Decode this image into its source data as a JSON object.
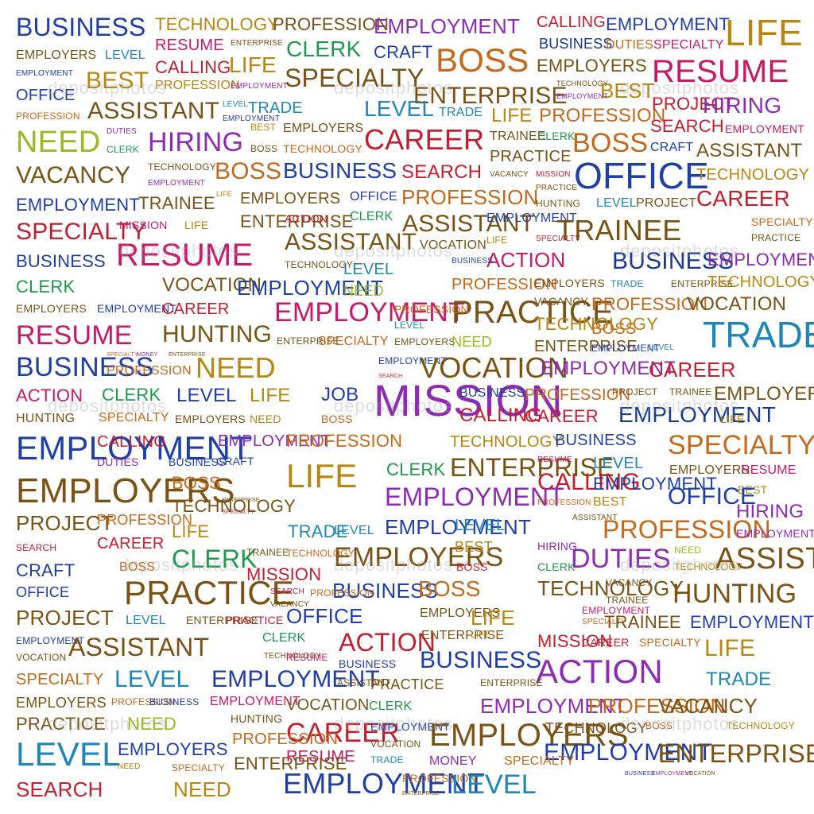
{
  "palette": {
    "blue": "#1f3fa8",
    "gold": "#b9860f",
    "magenta": "#c81868",
    "green": "#1e9a4a",
    "purple": "#8e2bb3",
    "brown": "#7a5214",
    "orange": "#c4681a",
    "lime": "#9ab820",
    "red": "#c41e2e",
    "cyan": "#1f86b8",
    "navy": "#173a8a",
    "pink": "#d2268a"
  },
  "watermark": {
    "text": "depositphotos"
  },
  "words": [
    {
      "t": "BUSINESS",
      "c": "blue"
    },
    {
      "t": "TECHNOLOGY",
      "c": "gold"
    },
    {
      "t": "PROFESSION",
      "c": "brown"
    },
    {
      "t": "EMPLOYMENT",
      "c": "purple"
    },
    {
      "t": "CALLING",
      "c": "red"
    },
    {
      "t": "EMPLOYMENT",
      "c": "blue"
    },
    {
      "t": "LIFE",
      "c": "gold"
    },
    {
      "t": "EMPLOYERS",
      "c": "brown"
    },
    {
      "t": "LEVEL",
      "c": "cyan"
    },
    {
      "t": "RESUME",
      "c": "magenta"
    },
    {
      "t": "ENTERPRISE",
      "c": "brown"
    },
    {
      "t": "CLERK",
      "c": "green"
    },
    {
      "t": "CRAFT",
      "c": "blue"
    },
    {
      "t": "BOSS",
      "c": "orange"
    },
    {
      "t": "BUSINESS",
      "c": "navy"
    },
    {
      "t": "DUTIES",
      "c": "orange"
    },
    {
      "t": "SPECIALTY",
      "c": "magenta"
    },
    {
      "t": "EMPLOYMENT",
      "c": "blue"
    },
    {
      "t": "BEST",
      "c": "gold"
    },
    {
      "t": "CALLING",
      "c": "red"
    },
    {
      "t": "LIFE",
      "c": "gold"
    },
    {
      "t": "SPECIALTY",
      "c": "brown"
    },
    {
      "t": "EMPLOYERS",
      "c": "brown"
    },
    {
      "t": "RESUME",
      "c": "magenta"
    },
    {
      "t": "OFFICE",
      "c": "blue"
    },
    {
      "t": "PROFESSION",
      "c": "gold"
    },
    {
      "t": "EMPLOYMENT",
      "c": "purple"
    },
    {
      "t": "ENTERPRISE",
      "c": "brown"
    },
    {
      "t": "TECHNOLOGY",
      "c": "brown"
    },
    {
      "t": "BEST",
      "c": "gold"
    },
    {
      "t": "EMPLOYMENT",
      "c": "purple"
    },
    {
      "t": "PROFESSION",
      "c": "orange"
    },
    {
      "t": "ASSISTANT",
      "c": "brown"
    },
    {
      "t": "LEVEL",
      "c": "cyan"
    },
    {
      "t": "TRADE",
      "c": "cyan"
    },
    {
      "t": "EMPLOYMENT",
      "c": "blue"
    },
    {
      "t": "LEVEL",
      "c": "cyan"
    },
    {
      "t": "TRADE",
      "c": "cyan"
    },
    {
      "t": "LIFE",
      "c": "gold"
    },
    {
      "t": "PROFESSION",
      "c": "orange"
    },
    {
      "t": "PROJECT",
      "c": "red"
    },
    {
      "t": "HIRING",
      "c": "purple"
    },
    {
      "t": "NEED",
      "c": "lime"
    },
    {
      "t": "DUTIES",
      "c": "purple"
    },
    {
      "t": "CLERK",
      "c": "green"
    },
    {
      "t": "HIRING",
      "c": "purple"
    },
    {
      "t": "BEST",
      "c": "gold"
    },
    {
      "t": "BOSS",
      "c": "brown"
    },
    {
      "t": "EMPLOYERS",
      "c": "brown"
    },
    {
      "t": "TECHNOLOGY",
      "c": "orange"
    },
    {
      "t": "CAREER",
      "c": "red"
    },
    {
      "t": "TRAINEE",
      "c": "brown"
    },
    {
      "t": "CLERK",
      "c": "green"
    },
    {
      "t": "BOSS",
      "c": "orange"
    },
    {
      "t": "SEARCH",
      "c": "red"
    },
    {
      "t": "EMPLOYMENT",
      "c": "magenta"
    },
    {
      "t": "PRACTICE",
      "c": "brown"
    },
    {
      "t": "CRAFT",
      "c": "blue"
    },
    {
      "t": "ASSISTANT",
      "c": "brown"
    },
    {
      "t": "VACANCY",
      "c": "brown"
    },
    {
      "t": "TECHNOLOGY",
      "c": "brown"
    },
    {
      "t": "EMPLOYMENT",
      "c": "purple"
    },
    {
      "t": "BOSS",
      "c": "orange"
    },
    {
      "t": "BUSINESS",
      "c": "blue"
    },
    {
      "t": "SEARCH",
      "c": "red"
    },
    {
      "t": "VACANCY",
      "c": "brown"
    },
    {
      "t": "MISSION",
      "c": "red"
    },
    {
      "t": "OFFICE",
      "c": "blue"
    },
    {
      "t": "TECHNOLOGY",
      "c": "gold"
    },
    {
      "t": "EMPLOYMENT",
      "c": "blue"
    },
    {
      "t": "TRAINEE",
      "c": "brown"
    },
    {
      "t": "LIFE",
      "c": "gold"
    },
    {
      "t": "EMPLOYERS",
      "c": "brown"
    },
    {
      "t": "OFFICE",
      "c": "blue"
    },
    {
      "t": "PROFESSION",
      "c": "orange"
    },
    {
      "t": "PRACTICE",
      "c": "brown"
    },
    {
      "t": "HUNTING",
      "c": "brown"
    },
    {
      "t": "LEVEL",
      "c": "cyan"
    },
    {
      "t": "PROJECT",
      "c": "brown"
    },
    {
      "t": "CAREER",
      "c": "red"
    },
    {
      "t": "SPECIALTY",
      "c": "red"
    },
    {
      "t": "MISSION",
      "c": "magenta"
    },
    {
      "t": "LIFE",
      "c": "gold"
    },
    {
      "t": "ENTERPRISE",
      "c": "brown"
    },
    {
      "t": "ACTION",
      "c": "red"
    },
    {
      "t": "CLERK",
      "c": "green"
    },
    {
      "t": "ASSISTANT",
      "c": "brown"
    },
    {
      "t": "EMPLOYMENT",
      "c": "blue"
    },
    {
      "t": "TRAINEE",
      "c": "brown"
    },
    {
      "t": "SPECIALTY",
      "c": "orange"
    },
    {
      "t": "PRACTICE",
      "c": "brown"
    },
    {
      "t": "BUSINESS",
      "c": "blue"
    },
    {
      "t": "RESUME",
      "c": "magenta"
    },
    {
      "t": "ASSISTANT",
      "c": "brown"
    },
    {
      "t": "TECHNOLOGY",
      "c": "brown"
    },
    {
      "t": "VOCATION",
      "c": "brown"
    },
    {
      "t": "LIFE",
      "c": "gold"
    },
    {
      "t": "SPECIALTY",
      "c": "red"
    },
    {
      "t": "ACTION",
      "c": "magenta"
    },
    {
      "t": "BUSINESS",
      "c": "navy"
    },
    {
      "t": "EMPLOYMENT",
      "c": "purple"
    },
    {
      "t": "CLERK",
      "c": "green"
    },
    {
      "t": "VOCATION",
      "c": "brown"
    },
    {
      "t": "EMPLOYMENT",
      "c": "blue"
    },
    {
      "t": "LEVEL",
      "c": "cyan"
    },
    {
      "t": "BUSINESS",
      "c": "blue"
    },
    {
      "t": "PROFESSION",
      "c": "orange"
    },
    {
      "t": "EMPLOYERS",
      "c": "brown"
    },
    {
      "t": "TRADE",
      "c": "cyan"
    },
    {
      "t": "ENTERPRISE",
      "c": "brown"
    },
    {
      "t": "TECHNOLOGY",
      "c": "gold"
    },
    {
      "t": "EMPLOYERS",
      "c": "brown"
    },
    {
      "t": "EMPLOYMENT",
      "c": "blue"
    },
    {
      "t": "CAREER",
      "c": "red"
    },
    {
      "t": "EMPLOYMENT",
      "c": "magenta"
    },
    {
      "t": "NEED",
      "c": "lime"
    },
    {
      "t": "PRACTICE",
      "c": "brown"
    },
    {
      "t": "VACANCY",
      "c": "brown"
    },
    {
      "t": "PROFESSION",
      "c": "orange"
    },
    {
      "t": "VOCATION",
      "c": "brown"
    },
    {
      "t": "RESUME",
      "c": "magenta"
    },
    {
      "t": "HUNTING",
      "c": "brown"
    },
    {
      "t": "PROFESSION",
      "c": "orange"
    },
    {
      "t": "LEVEL",
      "c": "cyan"
    },
    {
      "t": "TECHNOLOGY",
      "c": "gold"
    },
    {
      "t": "BOSS",
      "c": "orange"
    },
    {
      "t": "TRADE",
      "c": "cyan"
    },
    {
      "t": "ENTERPRISE",
      "c": "brown"
    },
    {
      "t": "SPECIALTY",
      "c": "orange"
    },
    {
      "t": "EMPLOYERS",
      "c": "brown"
    },
    {
      "t": "NEED",
      "c": "lime"
    },
    {
      "t": "ENTERPRISE",
      "c": "brown"
    },
    {
      "t": "EMPLOYMENT",
      "c": "blue"
    },
    {
      "t": "LEVEL",
      "c": "cyan"
    },
    {
      "t": "BUSINESS",
      "c": "blue"
    },
    {
      "t": "SPECIALTY",
      "c": "orange"
    },
    {
      "t": "MONEY",
      "c": "purple"
    },
    {
      "t": "ENTERPRISE",
      "c": "brown"
    },
    {
      "t": "PROFESSION",
      "c": "orange"
    },
    {
      "t": "NEED",
      "c": "gold"
    },
    {
      "t": "EMPLOYMENT",
      "c": "blue"
    },
    {
      "t": "SEARCH",
      "c": "red"
    },
    {
      "t": "VOCATION",
      "c": "brown"
    },
    {
      "t": "EMPLOYMENT",
      "c": "purple"
    },
    {
      "t": "CAREER",
      "c": "red"
    },
    {
      "t": "ACTION",
      "c": "magenta"
    },
    {
      "t": "CLERK",
      "c": "green"
    },
    {
      "t": "LEVEL",
      "c": "blue"
    },
    {
      "t": "LIFE",
      "c": "gold"
    },
    {
      "t": "JOB",
      "c": "blue"
    },
    {
      "t": "MISSION",
      "c": "purple"
    },
    {
      "t": "BUSINESS",
      "c": "blue"
    },
    {
      "t": "PROFESSION",
      "c": "orange"
    },
    {
      "t": "PROJECT",
      "c": "brown"
    },
    {
      "t": "TRAINEE",
      "c": "brown"
    },
    {
      "t": "EMPLOYERS",
      "c": "brown"
    },
    {
      "t": "HUNTING",
      "c": "brown"
    },
    {
      "t": "SPECIALTY",
      "c": "orange"
    },
    {
      "t": "EMPLOYERS",
      "c": "brown"
    },
    {
      "t": "NEED",
      "c": "gold"
    },
    {
      "t": "BOSS",
      "c": "orange"
    },
    {
      "t": "CALLING",
      "c": "red"
    },
    {
      "t": "CAREER",
      "c": "red"
    },
    {
      "t": "EMPLOYMENT",
      "c": "navy"
    },
    {
      "t": "LIFE",
      "c": "gold"
    },
    {
      "t": "EMPLOYMENT",
      "c": "blue"
    },
    {
      "t": "CALLING",
      "c": "red"
    },
    {
      "t": "EMPLOYMENT",
      "c": "purple"
    },
    {
      "t": "PROFESSION",
      "c": "orange"
    },
    {
      "t": "TECHNOLOGY",
      "c": "gold"
    },
    {
      "t": "BUSINESS",
      "c": "blue"
    },
    {
      "t": "SPECIALTY",
      "c": "orange"
    },
    {
      "t": "DUTIES",
      "c": "purple"
    },
    {
      "t": "BUSINESS",
      "c": "blue"
    },
    {
      "t": "CRAFT",
      "c": "blue"
    },
    {
      "t": "CLERK",
      "c": "green"
    },
    {
      "t": "ENTERPRISE",
      "c": "brown"
    },
    {
      "t": "RESUME",
      "c": "magenta"
    },
    {
      "t": "LEVEL",
      "c": "cyan"
    },
    {
      "t": "EMPLOYERS",
      "c": "brown"
    },
    {
      "t": "RESUME",
      "c": "magenta"
    },
    {
      "t": "EMPLOYERS",
      "c": "brown"
    },
    {
      "t": "BOSS",
      "c": "orange"
    },
    {
      "t": "LIFE",
      "c": "gold"
    },
    {
      "t": "CALLING",
      "c": "red"
    },
    {
      "t": "EMPLOYMENT",
      "c": "blue"
    },
    {
      "t": "BEST",
      "c": "gold"
    },
    {
      "t": "TECHNOLOGY",
      "c": "brown"
    },
    {
      "t": "ENTERPRISE",
      "c": "brown"
    },
    {
      "t": "SPECIALTY",
      "c": "red"
    },
    {
      "t": "EMPLOYMENT",
      "c": "purple"
    },
    {
      "t": "PROFESSION",
      "c": "orange"
    },
    {
      "t": "BEST",
      "c": "gold"
    },
    {
      "t": "OFFICE",
      "c": "blue"
    },
    {
      "t": "HIRING",
      "c": "purple"
    },
    {
      "t": "PROJECT",
      "c": "brown"
    },
    {
      "t": "PROFESSION",
      "c": "orange"
    },
    {
      "t": "LIFE",
      "c": "gold"
    },
    {
      "t": "TRADE",
      "c": "cyan"
    },
    {
      "t": "LEVEL",
      "c": "cyan"
    },
    {
      "t": "EMPLOYMENT",
      "c": "blue"
    },
    {
      "t": "LEVEL",
      "c": "cyan"
    },
    {
      "t": "ASSISTANT",
      "c": "brown"
    },
    {
      "t": "PROFESSION",
      "c": "orange"
    },
    {
      "t": "EMPLOYMENT",
      "c": "purple"
    },
    {
      "t": "SEARCH",
      "c": "red"
    },
    {
      "t": "CAREER",
      "c": "red"
    },
    {
      "t": "EMPLOYERS",
      "c": "brown"
    },
    {
      "t": "BEST",
      "c": "gold"
    },
    {
      "t": "HIRING",
      "c": "purple"
    },
    {
      "t": "DUTIES",
      "c": "purple"
    },
    {
      "t": "NEED",
      "c": "lime"
    },
    {
      "t": "ASSISTANT",
      "c": "brown"
    },
    {
      "t": "CRAFT",
      "c": "blue"
    },
    {
      "t": "BOSS",
      "c": "orange"
    },
    {
      "t": "CLERK",
      "c": "green"
    },
    {
      "t": "TRAINEE",
      "c": "brown"
    },
    {
      "t": "TECHNOLOGY",
      "c": "orange"
    },
    {
      "t": "BOSS",
      "c": "red"
    },
    {
      "t": "CLERK",
      "c": "green"
    },
    {
      "t": "TECHNOLOGY",
      "c": "gold"
    },
    {
      "t": "OFFICE",
      "c": "blue"
    },
    {
      "t": "PRACTICE",
      "c": "brown"
    },
    {
      "t": "MISSION",
      "c": "red"
    },
    {
      "t": "SEARCH",
      "c": "red"
    },
    {
      "t": "BUSINESS",
      "c": "blue"
    },
    {
      "t": "BOSS",
      "c": "orange"
    },
    {
      "t": "TECHNOLOGY",
      "c": "brown"
    },
    {
      "t": "VACANCY",
      "c": "brown"
    },
    {
      "t": "HUNTING",
      "c": "brown"
    },
    {
      "t": "PROJECT",
      "c": "brown"
    },
    {
      "t": "LEVEL",
      "c": "cyan"
    },
    {
      "t": "ENTERPRISE",
      "c": "brown"
    },
    {
      "t": "PRACTICE",
      "c": "red"
    },
    {
      "t": "VACANCY",
      "c": "brown"
    },
    {
      "t": "PROFESSION",
      "c": "orange"
    },
    {
      "t": "OFFICE",
      "c": "blue"
    },
    {
      "t": "EMPLOYERS",
      "c": "brown"
    },
    {
      "t": "LIFE",
      "c": "gold"
    },
    {
      "t": "EMPLOYMENT",
      "c": "magenta"
    },
    {
      "t": "TRAINEE",
      "c": "brown"
    },
    {
      "t": "EMPLOYMENT",
      "c": "blue"
    },
    {
      "t": "TRAINEE",
      "c": "brown"
    },
    {
      "t": "EMPLOYMENT",
      "c": "blue"
    },
    {
      "t": "ASSISTANT",
      "c": "brown"
    },
    {
      "t": "CLERK",
      "c": "green"
    },
    {
      "t": "ACTION",
      "c": "red"
    },
    {
      "t": "ENTERPRISE",
      "c": "brown"
    },
    {
      "t": "LIFE",
      "c": "gold"
    },
    {
      "t": "MISSION",
      "c": "red"
    },
    {
      "t": "SPECIALTY",
      "c": "orange"
    },
    {
      "t": "CAREER",
      "c": "red"
    },
    {
      "t": "SPECIALTY",
      "c": "orange"
    },
    {
      "t": "LIFE",
      "c": "gold"
    },
    {
      "t": "VOCATION",
      "c": "brown"
    },
    {
      "t": "TECHNOLOGY",
      "c": "brown"
    },
    {
      "t": "RESUME",
      "c": "magenta"
    },
    {
      "t": "BUSINESS",
      "c": "blue"
    },
    {
      "t": "BUSINESS",
      "c": "blue"
    },
    {
      "t": "ACTION",
      "c": "purple"
    },
    {
      "t": "SPECIALTY",
      "c": "orange"
    },
    {
      "t": "LEVEL",
      "c": "cyan"
    },
    {
      "t": "EMPLOYMENT",
      "c": "blue"
    },
    {
      "t": "ASSISTANT",
      "c": "brown"
    },
    {
      "t": "PRACTICE",
      "c": "brown"
    },
    {
      "t": "ENTERPRISE",
      "c": "brown"
    },
    {
      "t": "TRADE",
      "c": "cyan"
    },
    {
      "t": "EMPLOYERS",
      "c": "brown"
    },
    {
      "t": "PROFESSION",
      "c": "orange"
    },
    {
      "t": "BUSINESS",
      "c": "blue"
    },
    {
      "t": "EMPLOYMENT",
      "c": "magenta"
    },
    {
      "t": "VOCATION",
      "c": "brown"
    },
    {
      "t": "CLERK",
      "c": "green"
    },
    {
      "t": "EMPLOYMENT",
      "c": "purple"
    },
    {
      "t": "PROFESSION",
      "c": "orange"
    },
    {
      "t": "VACANCY",
      "c": "brown"
    },
    {
      "t": "PRACTICE",
      "c": "brown"
    },
    {
      "t": "NEED",
      "c": "lime"
    },
    {
      "t": "HUNTING",
      "c": "brown"
    },
    {
      "t": "CAREER",
      "c": "red"
    },
    {
      "t": "EMPLOYMENT",
      "c": "blue"
    },
    {
      "t": "EMPLOYERS",
      "c": "brown"
    },
    {
      "t": "TECHNOLOGY",
      "c": "brown"
    },
    {
      "t": "BOSS",
      "c": "orange"
    },
    {
      "t": "TECHNOLOGY",
      "c": "gold"
    },
    {
      "t": "LEVEL",
      "c": "cyan"
    },
    {
      "t": "EMPLOYERS",
      "c": "blue"
    },
    {
      "t": "PROFESSION",
      "c": "orange"
    },
    {
      "t": "RESUME",
      "c": "magenta"
    },
    {
      "t": "VOCATION",
      "c": "brown"
    },
    {
      "t": "EMPLOYMENT",
      "c": "blue"
    },
    {
      "t": "ENTERPRISE",
      "c": "brown"
    },
    {
      "t": "NEED",
      "c": "gold"
    },
    {
      "t": "SPECIALTY",
      "c": "orange"
    },
    {
      "t": "ENTERPRISE",
      "c": "brown"
    },
    {
      "t": "TRADE",
      "c": "cyan"
    },
    {
      "t": "MONEY",
      "c": "purple"
    },
    {
      "t": "SPECIALTY",
      "c": "orange"
    },
    {
      "t": "BUSINESS",
      "c": "blue"
    },
    {
      "t": "EMPLOYMENT",
      "c": "purple"
    },
    {
      "t": "VOCATION",
      "c": "brown"
    },
    {
      "t": "SEARCH",
      "c": "red"
    },
    {
      "t": "NEED",
      "c": "gold"
    },
    {
      "t": "EMPLOYMENT",
      "c": "blue"
    },
    {
      "t": "PROFESSION",
      "c": "orange"
    },
    {
      "t": "ENTERPRISE",
      "c": "brown"
    },
    {
      "t": "LEVEL",
      "c": "cyan"
    }
  ]
}
